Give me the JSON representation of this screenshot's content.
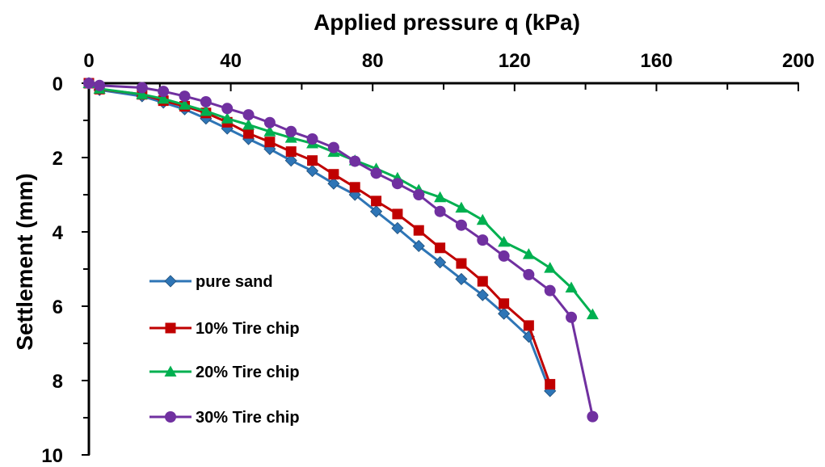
{
  "chart_data": {
    "type": "line",
    "xlabel": "Applied pressure q (kPa)",
    "ylabel": "Settlement (mm)",
    "xlim": [
      0,
      200
    ],
    "ylim": [
      0,
      10
    ],
    "x_ticks": [
      "0",
      "40",
      "80",
      "120",
      "160",
      "200"
    ],
    "y_ticks": [
      "0",
      "2",
      "4",
      "6",
      "8",
      "10"
    ],
    "x_axis_position": "top",
    "y_axis_inverted": true,
    "grid": false,
    "legend_position": "bottom-left",
    "series": [
      {
        "name": "pure sand",
        "color": "#2E75B6",
        "marker": "diamond",
        "x": [
          0,
          3,
          15,
          21,
          27,
          33,
          39,
          45,
          51,
          57,
          63,
          69,
          75,
          81,
          87,
          93,
          99,
          105,
          111,
          117,
          124,
          130
        ],
        "y": [
          0,
          0.18,
          0.35,
          0.52,
          0.7,
          0.95,
          1.22,
          1.5,
          1.77,
          2.08,
          2.36,
          2.7,
          3.0,
          3.45,
          3.9,
          4.38,
          4.82,
          5.27,
          5.7,
          6.2,
          6.82,
          8.28
        ]
      },
      {
        "name": "10% Tire chip",
        "color": "#C00000",
        "marker": "square",
        "x": [
          0,
          3,
          15,
          21,
          27,
          33,
          39,
          45,
          51,
          57,
          63,
          69,
          75,
          81,
          87,
          93,
          99,
          105,
          111,
          117,
          124,
          130
        ],
        "y": [
          0,
          0.16,
          0.3,
          0.47,
          0.62,
          0.8,
          1.05,
          1.35,
          1.58,
          1.84,
          2.08,
          2.45,
          2.8,
          3.17,
          3.52,
          3.96,
          4.43,
          4.85,
          5.33,
          5.93,
          6.52,
          8.1
        ]
      },
      {
        "name": "20% Tire chip",
        "color": "#00B050",
        "marker": "triangle",
        "x": [
          0,
          3,
          15,
          21,
          27,
          33,
          39,
          45,
          51,
          57,
          63,
          69,
          75,
          81,
          87,
          93,
          99,
          105,
          111,
          117,
          124,
          130,
          136,
          142
        ],
        "y": [
          0,
          0.15,
          0.3,
          0.42,
          0.58,
          0.75,
          0.95,
          1.12,
          1.3,
          1.47,
          1.62,
          1.85,
          2.08,
          2.3,
          2.55,
          2.87,
          3.07,
          3.35,
          3.68,
          4.27,
          4.6,
          4.97,
          5.5,
          6.22
        ]
      },
      {
        "name": "30% Tire chip",
        "color": "#7030A0",
        "marker": "circle",
        "x": [
          0,
          3,
          15,
          21,
          27,
          33,
          39,
          45,
          51,
          57,
          63,
          69,
          75,
          81,
          87,
          93,
          99,
          105,
          111,
          117,
          124,
          130,
          136,
          142
        ],
        "y": [
          0,
          0.06,
          0.12,
          0.22,
          0.35,
          0.5,
          0.68,
          0.85,
          1.06,
          1.3,
          1.5,
          1.73,
          2.1,
          2.42,
          2.7,
          3.0,
          3.45,
          3.82,
          4.22,
          4.65,
          5.15,
          5.58,
          6.3,
          8.97
        ]
      }
    ]
  }
}
